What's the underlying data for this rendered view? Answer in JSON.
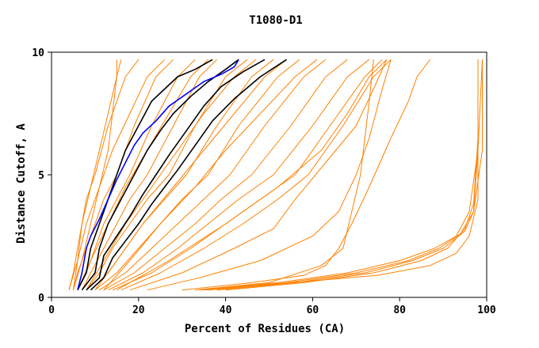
{
  "chart_data": {
    "type": "line",
    "title": "T1080-D1",
    "xlabel": "Percent of Residues (CA)",
    "ylabel": "Distance Cutoff, A",
    "xlim": [
      0,
      100
    ],
    "ylim": [
      0,
      10
    ],
    "x_ticks": [
      "0",
      "20",
      "40",
      "60",
      "80",
      "100"
    ],
    "y_ticks": [
      "0",
      "5",
      "10"
    ],
    "grid": false,
    "colors": {
      "bundle": "#ff8000",
      "reference": "#000000",
      "highlight": "#0000ff"
    },
    "series": [
      {
        "group": "bundle",
        "x": [
          4,
          5,
          6,
          7,
          8,
          10,
          13,
          17,
          20
        ],
        "y": [
          0.3,
          1,
          2,
          3,
          4,
          5,
          7,
          9,
          9.7
        ]
      },
      {
        "group": "bundle",
        "x": [
          5,
          6,
          8,
          10,
          12,
          15,
          19,
          24,
          28
        ],
        "y": [
          0.3,
          1,
          2,
          3,
          4,
          5,
          7,
          9,
          9.7
        ]
      },
      {
        "group": "bundle",
        "x": [
          6,
          8,
          10,
          12,
          15,
          18,
          23,
          29,
          33
        ],
        "y": [
          0.3,
          1,
          2,
          3,
          4,
          5,
          7,
          9,
          9.7
        ]
      },
      {
        "group": "bundle",
        "x": [
          7,
          9,
          12,
          15,
          18,
          22,
          28,
          34,
          38
        ],
        "y": [
          0.3,
          1,
          2,
          3,
          4,
          5,
          7,
          9,
          9.7
        ]
      },
      {
        "group": "bundle",
        "x": [
          8,
          11,
          14,
          18,
          22,
          27,
          33,
          40,
          45
        ],
        "y": [
          0.3,
          1,
          2,
          3,
          4,
          5,
          7,
          9,
          9.7
        ]
      },
      {
        "group": "bundle",
        "x": [
          9,
          13,
          17,
          21,
          26,
          31,
          38,
          46,
          51
        ],
        "y": [
          0.3,
          1,
          2,
          3,
          4,
          5,
          7,
          9,
          9.7
        ]
      },
      {
        "group": "bundle",
        "x": [
          10,
          15,
          20,
          25,
          30,
          36,
          43,
          52,
          57
        ],
        "y": [
          0.3,
          1,
          2,
          3,
          4,
          5,
          7,
          9,
          9.7
        ]
      },
      {
        "group": "bundle",
        "x": [
          11,
          17,
          23,
          29,
          35,
          41,
          49,
          58,
          63
        ],
        "y": [
          0.3,
          1,
          2,
          3,
          4,
          5,
          7,
          9,
          9.7
        ]
      },
      {
        "group": "bundle",
        "x": [
          12,
          19,
          26,
          33,
          39,
          46,
          55,
          63,
          68
        ],
        "y": [
          0.3,
          1,
          2,
          3,
          4,
          5,
          7,
          9,
          9.7
        ]
      },
      {
        "group": "bundle",
        "x": [
          13,
          21,
          29,
          36,
          43,
          51,
          60,
          68,
          73
        ],
        "y": [
          0.3,
          1,
          2,
          3,
          4,
          5,
          7,
          9,
          9.7
        ]
      },
      {
        "group": "bundle",
        "x": [
          14,
          23,
          32,
          40,
          48,
          56,
          64,
          72,
          76
        ],
        "y": [
          0.3,
          1,
          2,
          3,
          4,
          5,
          7,
          9,
          9.7
        ]
      },
      {
        "group": "bundle",
        "x": [
          16,
          25,
          35,
          44,
          52,
          59,
          67,
          74,
          78
        ],
        "y": [
          0.3,
          1,
          2,
          3,
          4,
          5,
          7,
          9,
          9.7
        ]
      },
      {
        "group": "bundle",
        "x": [
          4,
          6,
          8,
          11,
          14,
          18,
          22,
          26
        ],
        "y": [
          0.3,
          1.5,
          3,
          4.5,
          6,
          7.5,
          9,
          9.7
        ]
      },
      {
        "group": "bundle",
        "x": [
          6,
          9,
          13,
          17,
          22,
          27,
          32,
          36
        ],
        "y": [
          0.3,
          1.5,
          3,
          4.5,
          6,
          7.5,
          9,
          9.7
        ]
      },
      {
        "group": "bundle",
        "x": [
          8,
          12,
          17,
          23,
          29,
          35,
          42,
          47
        ],
        "y": [
          0.3,
          1.5,
          3,
          4.5,
          6,
          7.5,
          9,
          9.7
        ]
      },
      {
        "group": "bundle",
        "x": [
          10,
          15,
          21,
          28,
          35,
          42,
          49,
          54
        ],
        "y": [
          0.3,
          1.5,
          3,
          4.5,
          6,
          7.5,
          9,
          9.7
        ]
      },
      {
        "group": "bundle",
        "x": [
          12,
          18,
          25,
          33,
          40,
          48,
          56,
          61
        ],
        "y": [
          0.3,
          1.5,
          3,
          4.5,
          6,
          7.5,
          9,
          9.7
        ]
      },
      {
        "group": "bundle",
        "x": [
          5,
          6,
          7,
          9,
          11,
          13,
          15,
          16
        ],
        "y": [
          0.3,
          1.5,
          3,
          4.5,
          6,
          7.5,
          9,
          9.7
        ]
      },
      {
        "group": "bundle",
        "x": [
          5,
          7,
          9,
          11,
          13,
          14,
          15,
          15
        ],
        "y": [
          0.3,
          1.5,
          3,
          4.5,
          6,
          7.5,
          9,
          9.7
        ]
      },
      {
        "group": "bundle",
        "x": [
          15,
          27,
          40,
          52,
          62,
          68,
          73,
          77
        ],
        "y": [
          0.3,
          1.5,
          3,
          4.5,
          6,
          7.5,
          9,
          9.7
        ]
      },
      {
        "group": "bundle",
        "x": [
          18,
          30,
          42,
          51,
          56,
          63,
          70,
          74,
          77
        ],
        "y": [
          0.3,
          1,
          2,
          2.8,
          4,
          5.5,
          7,
          8.5,
          9.7
        ]
      },
      {
        "group": "bundle",
        "x": [
          22,
          34,
          48,
          60,
          66,
          70,
          73,
          76,
          78
        ],
        "y": [
          0.3,
          0.8,
          1.5,
          2.5,
          3.5,
          5,
          6.5,
          8.5,
          9.7
        ]
      },
      {
        "group": "bundle",
        "x": [
          30,
          46,
          58,
          63,
          66,
          69,
          73,
          78,
          82,
          84,
          87
        ],
        "y": [
          0.3,
          0.6,
          0.9,
          1.3,
          2,
          3,
          4.5,
          6.5,
          8,
          9,
          9.7
        ]
      },
      {
        "group": "bundle",
        "x": [
          33,
          50,
          62,
          67,
          69,
          71,
          72,
          73,
          74
        ],
        "y": [
          0.3,
          0.6,
          1.3,
          2,
          3.5,
          5,
          6.5,
          8,
          9.7
        ]
      },
      {
        "group": "bundle",
        "x": [
          34,
          52,
          68,
          80,
          88,
          93,
          96,
          98,
          99
        ],
        "y": [
          0.3,
          0.6,
          1,
          1.5,
          2,
          2.5,
          3.5,
          6,
          9.7
        ]
      },
      {
        "group": "bundle",
        "x": [
          36,
          54,
          70,
          82,
          89,
          94,
          97,
          98,
          98
        ],
        "y": [
          0.3,
          0.6,
          1,
          1.5,
          2,
          2.6,
          3.5,
          6,
          9.7
        ]
      },
      {
        "group": "bundle",
        "x": [
          38,
          56,
          72,
          83,
          90,
          95,
          97,
          99,
          99
        ],
        "y": [
          0.3,
          0.6,
          1,
          1.5,
          2,
          2.7,
          3.5,
          6,
          9.7
        ]
      },
      {
        "group": "bundle",
        "x": [
          40,
          58,
          74,
          85,
          91,
          95,
          97,
          98,
          98
        ],
        "y": [
          0.3,
          0.6,
          1,
          1.5,
          2,
          2.8,
          3.8,
          6.5,
          9.7
        ]
      },
      {
        "group": "bundle",
        "x": [
          35,
          55,
          75,
          87,
          93,
          96,
          98,
          98
        ],
        "y": [
          0.3,
          0.6,
          0.9,
          1.3,
          1.8,
          2.5,
          4,
          9.7
        ]
      },
      {
        "group": "reference",
        "x": [
          6,
          8,
          9,
          11,
          13,
          15,
          17,
          20,
          23,
          26,
          29,
          33,
          37
        ],
        "y": [
          0.3,
          1,
          2,
          3,
          4,
          5,
          6,
          7,
          8,
          8.5,
          9,
          9.3,
          9.7
        ]
      },
      {
        "group": "reference",
        "x": [
          7,
          10,
          11,
          13,
          16,
          19,
          22,
          25,
          28,
          32,
          36,
          40,
          43
        ],
        "y": [
          0.3,
          1,
          2,
          3,
          4,
          5,
          6,
          6.8,
          7.5,
          8.2,
          8.8,
          9.3,
          9.7
        ]
      },
      {
        "group": "reference",
        "x": [
          8,
          11,
          12,
          15,
          18,
          21,
          24,
          27,
          31,
          35,
          39,
          44,
          49
        ],
        "y": [
          0.3,
          0.8,
          1.7,
          2.5,
          3.3,
          4.2,
          5,
          5.8,
          6.8,
          7.8,
          8.6,
          9.2,
          9.7
        ]
      },
      {
        "group": "reference",
        "x": [
          9,
          12,
          14,
          17,
          20,
          23,
          26,
          29,
          33,
          37,
          42,
          48,
          54
        ],
        "y": [
          0.3,
          0.8,
          1.6,
          2.3,
          3,
          3.8,
          4.5,
          5.2,
          6.2,
          7.2,
          8.1,
          9,
          9.7
        ]
      },
      {
        "group": "highlight",
        "x": [
          6,
          7,
          8,
          9,
          11,
          13,
          15,
          17,
          19,
          21,
          24,
          27,
          31,
          35,
          39,
          42,
          43
        ],
        "y": [
          0.3,
          1,
          2,
          2.5,
          3.2,
          4,
          4.8,
          5.5,
          6.2,
          6.7,
          7.2,
          7.8,
          8.3,
          8.8,
          9.1,
          9.4,
          9.7
        ]
      }
    ]
  }
}
